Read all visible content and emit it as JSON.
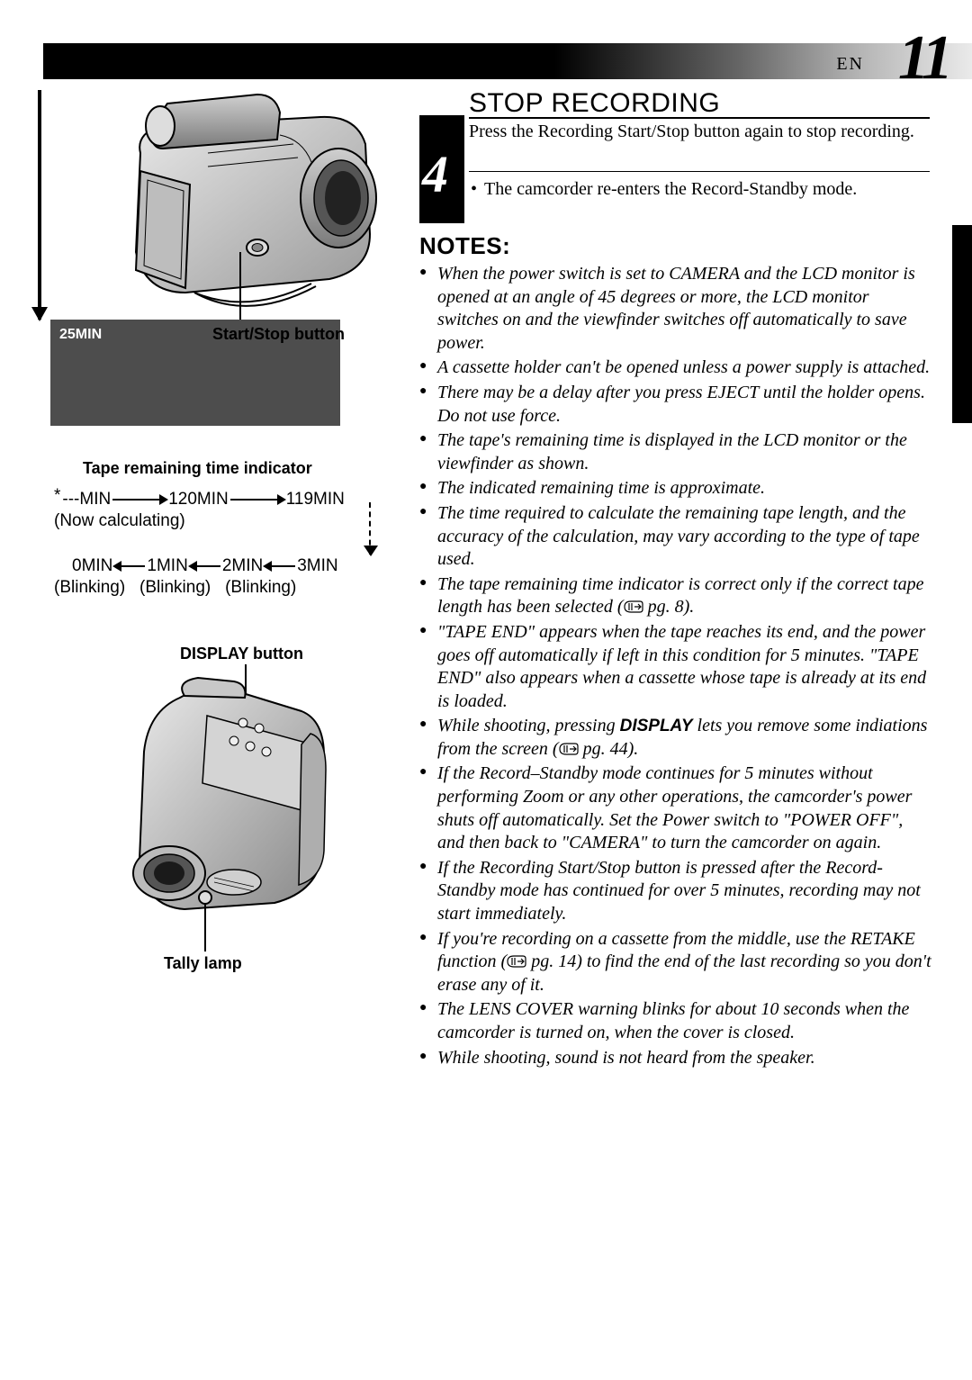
{
  "page": {
    "lang": "EN",
    "num": "11"
  },
  "left": {
    "lcd_time": "25MIN",
    "label_start_stop": "Start/Stop button",
    "label_tape_remaining": "Tape remaining time indicator",
    "flow_top": {
      "a": "---MIN",
      "b": "120MIN",
      "c": "119MIN",
      "now_calc": "(Now calculating)"
    },
    "flow_bottom": {
      "a": "0MIN",
      "b": "1MIN",
      "c": "2MIN",
      "d": "3MIN",
      "blinking": "(Blinking)"
    },
    "label_display": "DISPLAY button",
    "label_tally": "Tally lamp"
  },
  "step": {
    "num": "4",
    "title": "STOP RECORDING",
    "body": "Press the Recording Start/Stop button again to stop recording.",
    "bullet": "The camcorder re-enters the Record-Standby mode."
  },
  "notes": {
    "title": "NOTES:",
    "items": [
      "When the power switch is set to CAMERA and the LCD monitor is opened at an angle of 45 degrees or more, the LCD monitor switches on and the viewfinder switches off automatically to save power.",
      "A cassette holder can't be opened unless a power supply is attached.",
      "There may be a delay after you press EJECT until the holder opens. Do not use force.",
      "The tape's remaining time is displayed in the LCD monitor or the viewfinder as shown.",
      "The indicated remaining time is approximate.",
      "The time required to calculate the remaining tape length, and the accuracy of the calculation, may vary according to the type of tape used.",
      "The tape remaining time indicator is correct only if the correct tape length has been selected (☞ pg. 8).",
      "\"TAPE END\" appears when the tape reaches its end, and the power goes off automatically if left in this condition for 5 minutes. \"TAPE END\" also appears when a cassette whose tape is already at its end is loaded.",
      "While shooting, pressing <b>DISPLAY</b> lets you remove some indiations from the screen (☞ pg. 44).",
      "If the Record–Standby mode continues for 5 minutes without performing Zoom or any other operations, the camcorder's power shuts off automatically. Set the Power switch to \"POWER OFF\", and then back to \"CAMERA\" to turn the camcorder on again.",
      "If the Recording Start/Stop button is pressed after the Record-Standby mode has continued for over 5 minutes, recording may not start immediately.",
      "If you're recording on a cassette from the middle, use the RETAKE function (☞ pg. 14) to find the end of the last recording so you don't erase any of it.",
      "The LENS COVER warning blinks for about 10 seconds when the camcorder is turned on, when the cover is closed.",
      "While shooting, sound is not heard from the speaker."
    ]
  },
  "style": {
    "page_bg": "#ffffff",
    "lcd_bg": "#4d4d4d",
    "text_color": "#000000",
    "font_body": "Times New Roman",
    "font_label": "Arial"
  }
}
